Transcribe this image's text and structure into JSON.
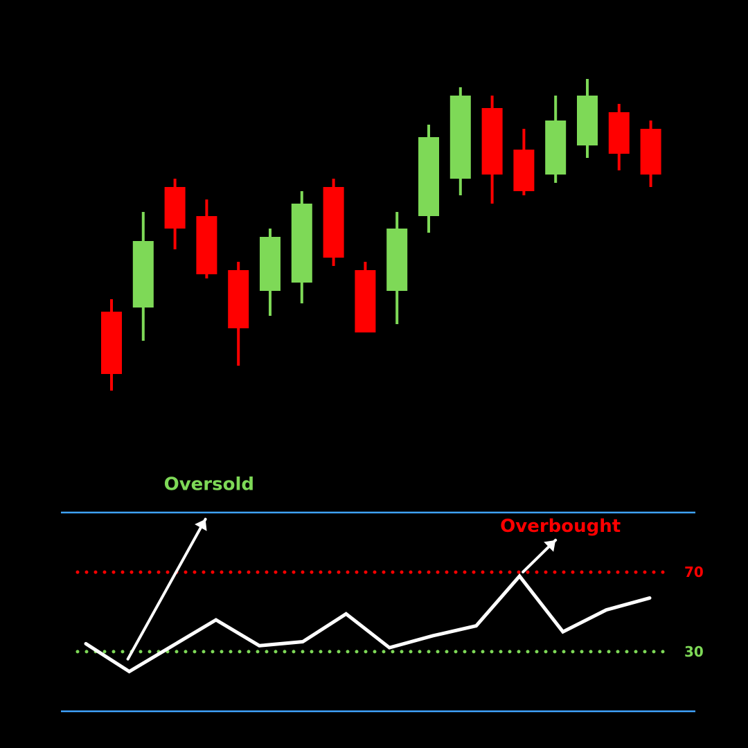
{
  "chart_data": [
    {
      "type": "candlestick",
      "title": "",
      "xlabel": "",
      "ylabel": "",
      "ylim": [
        0,
        100
      ],
      "colors": {
        "up": "#7ed957",
        "down": "#ff0000",
        "background": "#000000"
      },
      "candles": [
        {
          "open": 35,
          "close": 20,
          "high": 38,
          "low": 16
        },
        {
          "open": 36,
          "close": 52,
          "high": 59,
          "low": 28
        },
        {
          "open": 65,
          "close": 55,
          "high": 67,
          "low": 50
        },
        {
          "open": 58,
          "close": 44,
          "high": 62,
          "low": 43
        },
        {
          "open": 45,
          "close": 31,
          "high": 47,
          "low": 22
        },
        {
          "open": 40,
          "close": 53,
          "high": 55,
          "low": 34
        },
        {
          "open": 42,
          "close": 61,
          "high": 64,
          "low": 37
        },
        {
          "open": 65,
          "close": 48,
          "high": 67,
          "low": 46
        },
        {
          "open": 45,
          "close": 30,
          "high": 47,
          "low": 30
        },
        {
          "open": 40,
          "close": 55,
          "high": 59,
          "low": 32
        },
        {
          "open": 58,
          "close": 77,
          "high": 80,
          "low": 54
        },
        {
          "open": 67,
          "close": 87,
          "high": 89,
          "low": 63
        },
        {
          "open": 84,
          "close": 68,
          "high": 87,
          "low": 61
        },
        {
          "open": 74,
          "close": 64,
          "high": 79,
          "low": 63
        },
        {
          "open": 68,
          "close": 81,
          "high": 87,
          "low": 66
        },
        {
          "open": 75,
          "close": 87,
          "high": 91,
          "low": 72
        },
        {
          "open": 83,
          "close": 73,
          "high": 85,
          "low": 69
        },
        {
          "open": 79,
          "close": 68,
          "high": 81,
          "low": 65
        }
      ]
    },
    {
      "type": "line",
      "title": "",
      "xlabel": "",
      "ylabel": "",
      "ylim": [
        0,
        100
      ],
      "grid": false,
      "colors": {
        "line": "#ffffff",
        "bounds": "#3fa3ff",
        "overbought": "#ff0000",
        "oversold": "#7ed957"
      },
      "series": [
        {
          "values": [
            34,
            20,
            33,
            46,
            33,
            35,
            49,
            32,
            38,
            43,
            68,
            40,
            51,
            57
          ]
        }
      ],
      "x": [
        0,
        1,
        2,
        3,
        4,
        5,
        6,
        7,
        8,
        9,
        10,
        11,
        12,
        13
      ],
      "levels": [
        {
          "value": 70,
          "label": "70",
          "color": "#ff0000"
        },
        {
          "value": 30,
          "label": "30",
          "color": "#7ed957"
        }
      ],
      "annotations": [
        {
          "text": "Oversold",
          "point_index": 1,
          "color": "#7ed957"
        },
        {
          "text": "Overbought",
          "point_index": 10,
          "color": "#ff0000"
        }
      ]
    }
  ]
}
